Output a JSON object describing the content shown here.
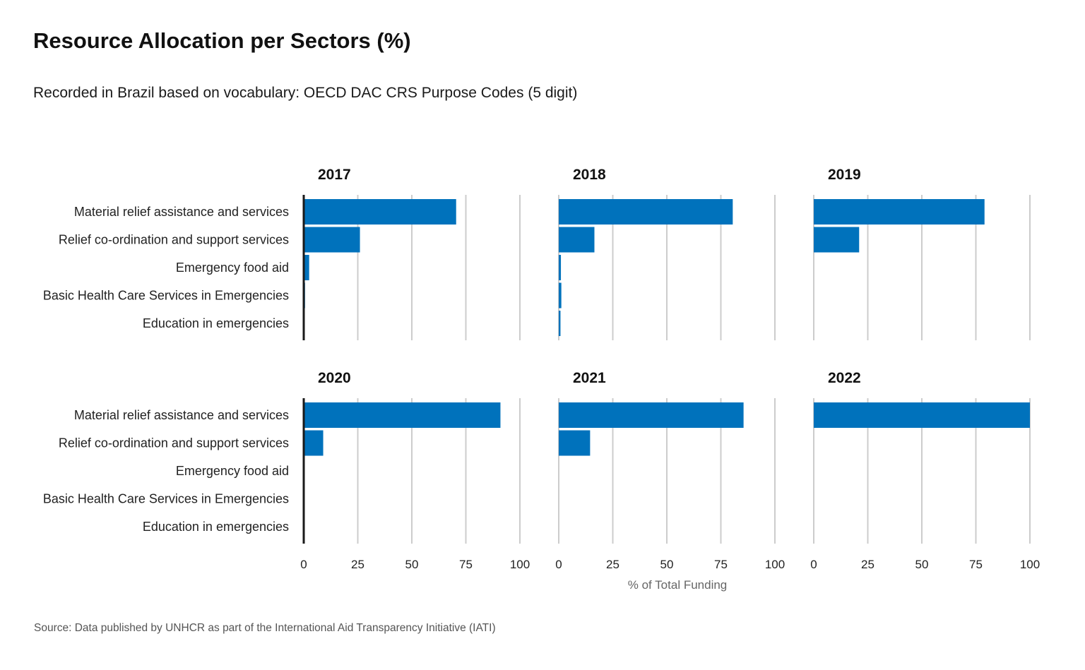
{
  "title": "Resource  Allocation per Sectors (%)",
  "subtitle": "Recorded in Brazil based on vocabulary: OECD DAC CRS Purpose Codes (5 digit)",
  "source": "Source: Data published by UNHCR as part of the International  Aid Transparency Initiative (IATI)",
  "colors": {
    "bar": "#0072bc",
    "grid": "#cccccc",
    "baseline": "#1a1a1a"
  },
  "chart_data": {
    "type": "bar",
    "orientation": "horizontal",
    "faceted": true,
    "categories": [
      "Material relief assistance and services",
      "Relief co-ordination and support services",
      "Emergency food aid",
      "Basic Health Care Services in Emergencies",
      "Education in emergencies"
    ],
    "xlabel": "% of Total Funding",
    "xlim": [
      0,
      100
    ],
    "xticks": [
      0,
      25,
      50,
      75,
      100
    ],
    "grid": true,
    "panels": [
      {
        "year": "2017",
        "values": [
          70.5,
          26.0,
          2.5,
          0.6,
          0.4
        ]
      },
      {
        "year": "2018",
        "values": [
          80.5,
          16.5,
          1.0,
          1.2,
          0.8
        ]
      },
      {
        "year": "2019",
        "values": [
          79.0,
          21.0,
          0,
          0,
          0
        ]
      },
      {
        "year": "2020",
        "values": [
          91.0,
          9.0,
          0,
          0,
          0
        ]
      },
      {
        "year": "2021",
        "values": [
          85.5,
          14.5,
          0,
          0,
          0
        ]
      },
      {
        "year": "2022",
        "values": [
          100.0,
          0,
          0,
          0,
          0
        ]
      }
    ]
  }
}
